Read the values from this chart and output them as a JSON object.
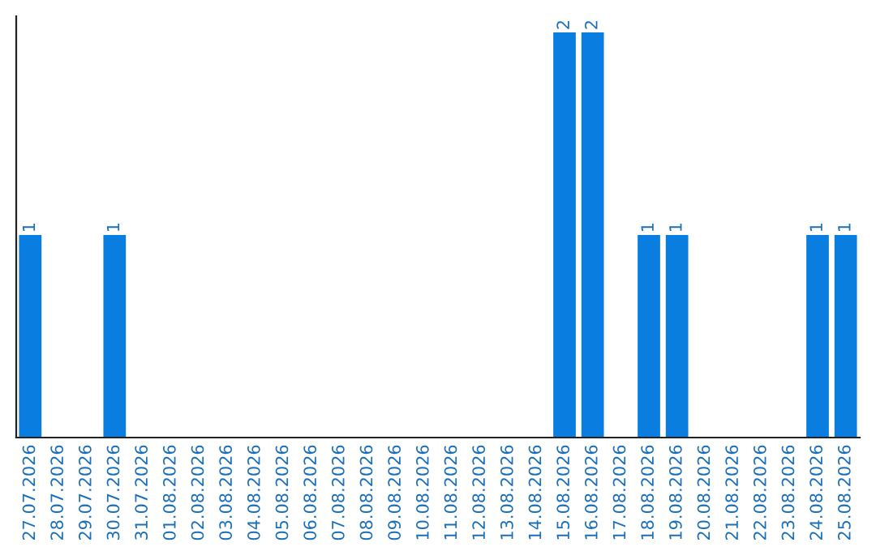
{
  "chart_data": {
    "type": "bar",
    "categories": [
      "27.07.2026",
      "28.07.2026",
      "29.07.2026",
      "30.07.2026",
      "31.07.2026",
      "01.08.2026",
      "02.08.2026",
      "03.08.2026",
      "04.08.2026",
      "05.08.2026",
      "06.08.2026",
      "07.08.2026",
      "08.08.2026",
      "09.08.2026",
      "10.08.2026",
      "11.08.2026",
      "12.08.2026",
      "13.08.2026",
      "14.08.2026",
      "15.08.2026",
      "16.08.2026",
      "17.08.2026",
      "18.08.2026",
      "19.08.2026",
      "20.08.2026",
      "21.08.2026",
      "22.08.2026",
      "23.08.2026",
      "24.08.2026",
      "25.08.2026"
    ],
    "values": [
      1,
      0,
      0,
      1,
      0,
      0,
      0,
      0,
      0,
      0,
      0,
      0,
      0,
      0,
      0,
      0,
      0,
      0,
      0,
      2,
      2,
      0,
      1,
      1,
      0,
      0,
      0,
      0,
      1,
      1
    ],
    "value_labels": [
      "1",
      null,
      null,
      "1",
      null,
      null,
      null,
      null,
      null,
      null,
      null,
      null,
      null,
      null,
      null,
      null,
      null,
      null,
      null,
      "2",
      "2",
      null,
      "1",
      "1",
      null,
      null,
      null,
      null,
      "1",
      "1"
    ],
    "color": "#0a7ee0",
    "ylim": [
      0,
      2.08
    ],
    "grid": false,
    "legend": false
  }
}
